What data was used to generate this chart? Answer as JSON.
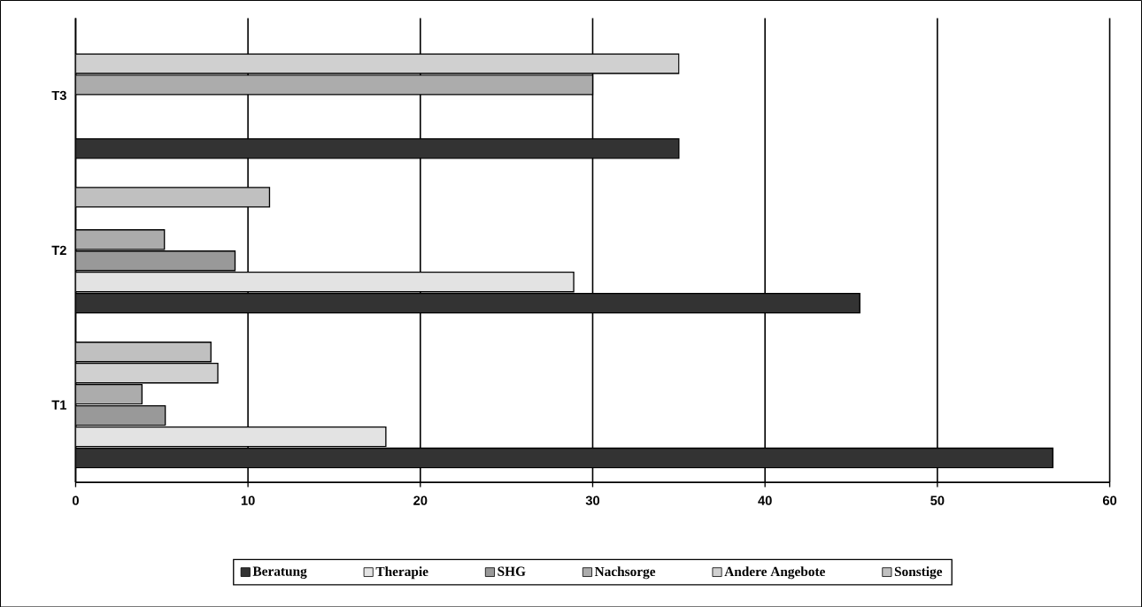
{
  "chart_data": {
    "type": "bar",
    "orientation": "horizontal",
    "categories": [
      "T3",
      "T2",
      "T1"
    ],
    "series": [
      {
        "name": "Beratung",
        "color": "#333333",
        "values": [
          35.0,
          45.5,
          56.7
        ]
      },
      {
        "name": "Therapie",
        "color": "#e3e3e3",
        "values": [
          null,
          28.9,
          18.0
        ]
      },
      {
        "name": "SHG",
        "color": "#999999",
        "values": [
          null,
          9.25,
          5.2
        ]
      },
      {
        "name": "Nachsorge",
        "color": "#acacac",
        "values": [
          30.0,
          5.15,
          3.85
        ]
      },
      {
        "name": "Andere Angebote",
        "color": "#d0d0d0",
        "values": [
          35.0,
          null,
          8.25
        ]
      },
      {
        "name": "Sonstige",
        "color": "#c0c0c0",
        "values": [
          null,
          11.25,
          7.85
        ]
      }
    ],
    "xlim": [
      0,
      60
    ],
    "xticks": [
      0,
      10,
      20,
      30,
      40,
      50,
      60
    ],
    "grid": "x",
    "legend": "bottom"
  }
}
